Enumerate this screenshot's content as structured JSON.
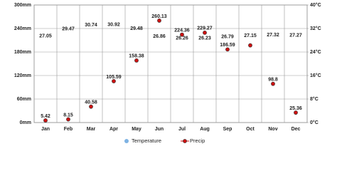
{
  "chart_data": {
    "type": "climate",
    "categories": [
      "Jan",
      "Feb",
      "Mar",
      "Apr",
      "May",
      "Jun",
      "Jul",
      "Aug",
      "Sep",
      "Oct",
      "Nov",
      "Dec"
    ],
    "series": [
      {
        "name": "Temperature",
        "color": "#7eb3e3",
        "axis": "y2",
        "values": [
          27.05,
          29.47,
          30.74,
          30.92,
          29.48,
          26.86,
          26.26,
          26.23,
          26.79,
          27.15,
          27.32,
          27.27
        ]
      },
      {
        "name": "Precip",
        "color": "#cc1111",
        "values": [
          5.42,
          8.15,
          40.58,
          105.59,
          158.38,
          260.13,
          224.36,
          229.27,
          186.59,
          197,
          98.8,
          25.36
        ],
        "value_labels": [
          "5.42",
          "8.15",
          "40.58",
          "105.59",
          "158.38",
          "260.13",
          "224.36",
          "229.27",
          "186.59",
          null,
          "98.8",
          "25.36"
        ]
      }
    ],
    "ylim": [
      0,
      300
    ],
    "yticks": [
      {
        "value": 0,
        "label": "0mm"
      },
      {
        "value": 60,
        "label": "60mm"
      },
      {
        "value": 120,
        "label": "120mm"
      },
      {
        "value": 180,
        "label": "180mm"
      },
      {
        "value": 240,
        "label": "240mm"
      },
      {
        "value": 300,
        "label": "300mm"
      }
    ],
    "y2lim": [
      0,
      40
    ],
    "y2ticks": [
      {
        "value": 0,
        "label": "0°C"
      },
      {
        "value": 8,
        "label": "8°C"
      },
      {
        "value": 16,
        "label": "16°C"
      },
      {
        "value": 24,
        "label": "24°C"
      },
      {
        "value": 32,
        "label": "32°C"
      },
      {
        "value": 40,
        "label": "40°C"
      }
    ],
    "grid": true
  }
}
